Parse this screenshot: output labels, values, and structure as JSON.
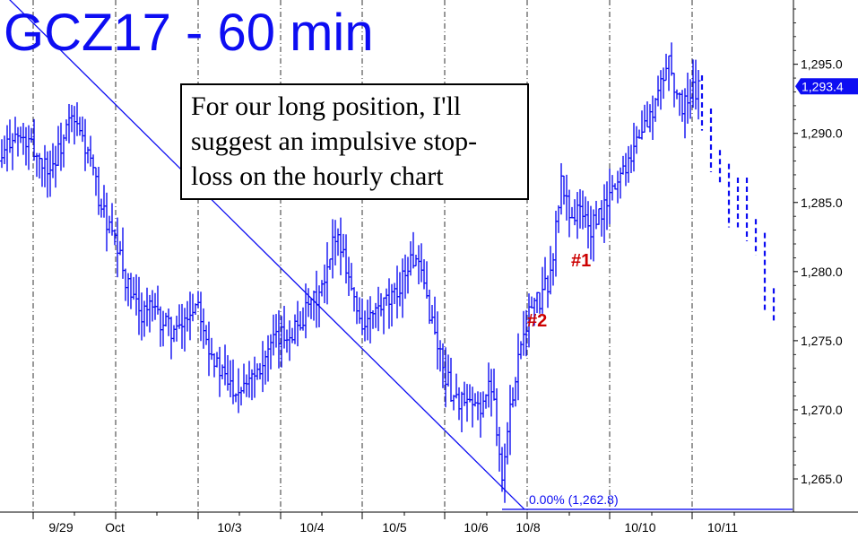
{
  "title": "GCZ17 - 60 min",
  "note_lines": [
    "For our long position, I'll",
    "suggest an impulsive stop-",
    "loss on the hourly chart"
  ],
  "colors": {
    "bars": "#0d0df2",
    "annotation": "#cc0000",
    "text": "#000000",
    "grid": "#000000",
    "price_tag_bg": "#0d0df2"
  },
  "chart_data": {
    "type": "ohlc",
    "symbol": "GCZ17",
    "interval": "60 min",
    "y_ticks": [
      1265.0,
      1270.0,
      1275.0,
      1280.0,
      1285.0,
      1290.0,
      1295.0
    ],
    "y_tick_labels": [
      "1,265.0",
      "1,270.0",
      "1,275.0",
      "1,280.0",
      "1,285.0",
      "1,290.0",
      "1,295.0"
    ],
    "ylim": [
      1262.6,
      1299.0
    ],
    "x_labels": [
      "9/29",
      "Oct",
      "10/3",
      "10/4",
      "10/5",
      "10/6",
      "10/8",
      "10/10",
      "10/11"
    ],
    "last_price": 1293.4,
    "last_price_label": "1,293.4",
    "fib_label": "0.00% (1,262.8)",
    "fib_level": 1262.8,
    "annotations": [
      {
        "text": "#1",
        "price": 1281.3
      },
      {
        "text": "#2",
        "price": 1276.8
      }
    ],
    "projected_path": [
      1293.4,
      1291.0,
      1288.0,
      1287.0,
      1284.0,
      1286.0,
      1283.0,
      1282.0,
      1278.0,
      1277.0
    ],
    "trendline": {
      "start": 1294.0,
      "end": 1262.8
    },
    "price_path": [
      1288.0,
      1290.0,
      1289.5,
      1289.0,
      1288.0,
      1287.5,
      1289.0,
      1291.0,
      1290.0,
      1288.0,
      1285.0,
      1283.0,
      1281.0,
      1278.5,
      1277.0,
      1277.5,
      1276.5,
      1276.0,
      1275.5,
      1277.0,
      1278.0,
      1275.0,
      1273.0,
      1272.0,
      1271.5,
      1272.5,
      1273.0,
      1274.0,
      1275.0,
      1275.5,
      1276.0,
      1277.0,
      1278.0,
      1279.0,
      1283.0,
      1281.0,
      1277.5,
      1276.0,
      1277.0,
      1277.5,
      1278.0,
      1280.0,
      1281.0,
      1279.0,
      1276.0,
      1273.0,
      1271.0,
      1270.5,
      1270.0,
      1270.5,
      1272.0,
      1265.0,
      1271.0,
      1275.5,
      1277.5,
      1278.0,
      1280.0,
      1286.5,
      1284.0,
      1284.5,
      1283.0,
      1284.0,
      1285.5,
      1287.0,
      1288.5,
      1290.0,
      1291.0,
      1293.0,
      1295.5,
      1292.0,
      1292.5,
      1293.4
    ]
  }
}
